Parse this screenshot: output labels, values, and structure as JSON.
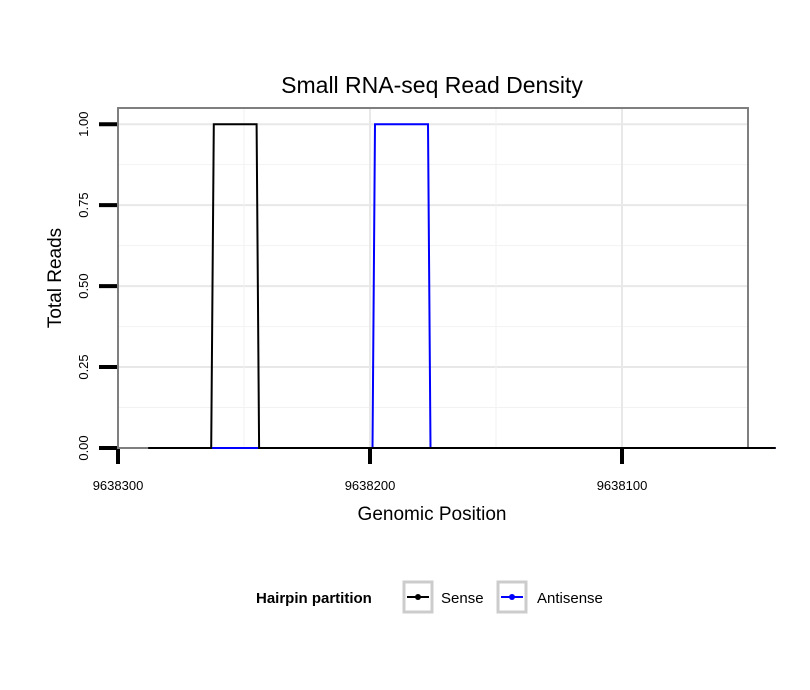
{
  "chart_data": {
    "type": "line",
    "title": "Small RNA-seq Read Density",
    "xlabel": "Genomic Position",
    "ylabel": "Total Reads",
    "xlim": [
      9638300,
      9638050
    ],
    "x_reversed": true,
    "ylim": [
      0,
      1.05
    ],
    "x_ticks": [
      9638300,
      9638200,
      9638100
    ],
    "x_tick_labels": [
      "9638300",
      "9638200",
      "9638100"
    ],
    "y_ticks": [
      0,
      0.25,
      0.5,
      0.75,
      1.0
    ],
    "y_tick_labels": [
      "0.00",
      "0.25",
      "0.50",
      "0.75",
      "1.00"
    ],
    "grid": true,
    "legend_title": "Hairpin partition",
    "legend_position": "bottom",
    "series": [
      {
        "name": "Sense",
        "color": "#000000",
        "x": [
          9638288,
          9638263,
          9638262,
          9638245,
          9638244,
          9638039
        ],
        "y": [
          0,
          0,
          1,
          1,
          0,
          0
        ]
      },
      {
        "name": "Antisense",
        "color": "#0000ff",
        "x": [
          9638263,
          9638244,
          9638225,
          9638224,
          9638199,
          9638198,
          9638177,
          9638176,
          9638039
        ],
        "y": [
          0,
          0,
          0,
          0,
          0,
          1,
          1,
          0,
          0
        ]
      }
    ]
  }
}
